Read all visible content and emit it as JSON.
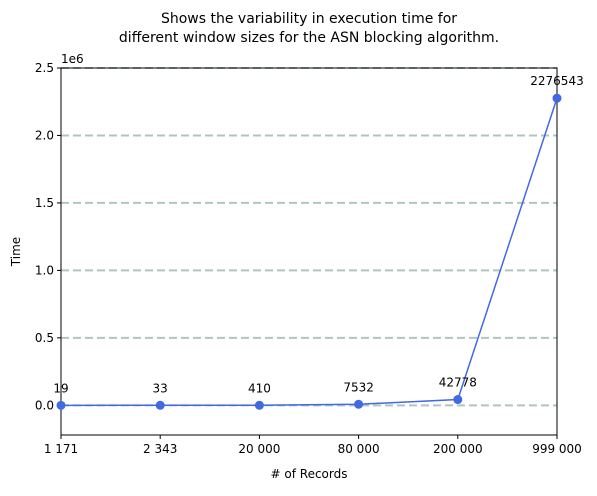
{
  "chart_data": {
    "type": "line",
    "title": "Shows the variability in execution time for\ndifferent window sizes for the ASN blocking algorithm.",
    "xlabel": "# of Records",
    "ylabel": "Time",
    "y_offset_label": "1e6",
    "categories": [
      "1 171",
      "2 343",
      "20 000",
      "80 000",
      "200 000",
      "999 000"
    ],
    "values": [
      19,
      33,
      410,
      7532,
      42778,
      2276543
    ],
    "data_labels": [
      "19",
      "33",
      "410",
      "7532",
      "42778",
      "2276543"
    ],
    "ylim": [
      -220000,
      2500000
    ],
    "yticks": [
      0,
      500000,
      1000000,
      1500000,
      2000000,
      2500000
    ],
    "ytick_labels": [
      "0.0",
      "0.5",
      "1.0",
      "1.5",
      "2.0",
      "2.5"
    ],
    "grid": "y-dashed",
    "colors": {
      "line": "#4169e1",
      "grid": "#b0c4c4"
    }
  }
}
